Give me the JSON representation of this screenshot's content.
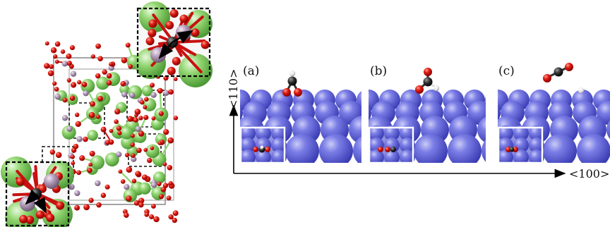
{
  "panels": [
    {
      "label": "(a)"
    },
    {
      "label": "(b)"
    },
    {
      "label": "(c)"
    }
  ],
  "axes": {
    "vertical_label": "<110>",
    "horizontal_label": "<100>"
  },
  "colors": {
    "surface_atom": "#5d5fd6",
    "oxygen": "#d01010",
    "carbon": "#3a3a3a",
    "hydrogen": "#f2f2f2",
    "green_cation": "#8fd36f",
    "lilac_atom": "#b29ab8",
    "cell_edge": "#777777"
  }
}
